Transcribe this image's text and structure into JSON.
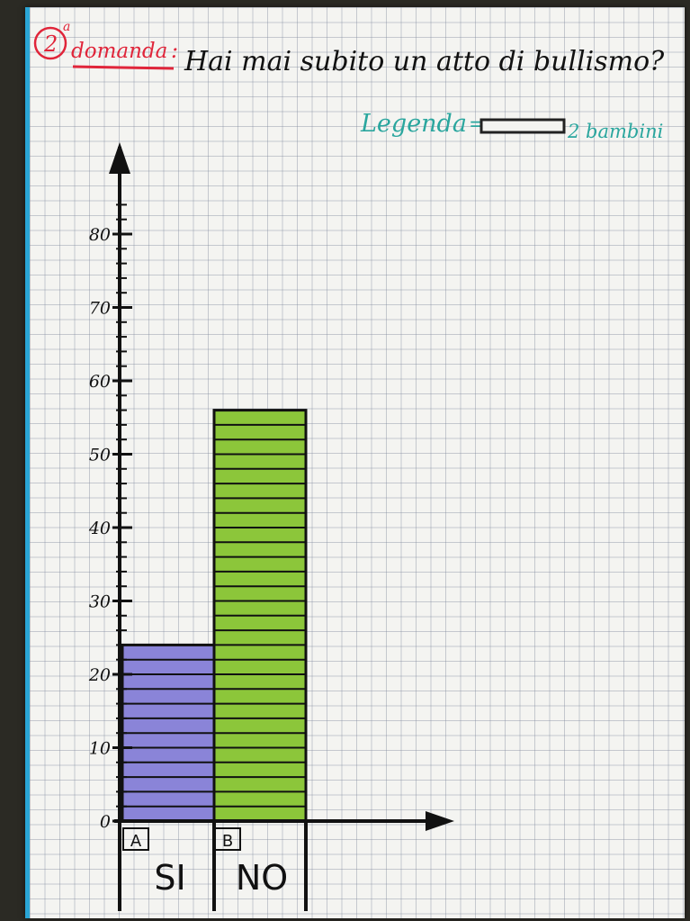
{
  "header": {
    "number": "2",
    "superscript": "a",
    "domanda": "domanda",
    "colon": ":",
    "question": "Hai mai subito un atto di bullismo?"
  },
  "legend": {
    "label": "Legenda",
    "equals": "=",
    "unit_text": "2 bambini"
  },
  "colors": {
    "ink": "#111111",
    "red": "#e0253a",
    "teal": "#2aa69e",
    "purple": "#8a84d8",
    "green": "#8cc63a"
  },
  "chart_data": {
    "type": "bar",
    "categories": [
      "SI",
      "NO"
    ],
    "category_codes": [
      "A",
      "B"
    ],
    "values": [
      24,
      56
    ],
    "yticks": [
      0,
      10,
      20,
      30,
      40,
      50,
      60,
      70,
      80
    ],
    "ylim": [
      0,
      86
    ],
    "minor_tick_step": 2,
    "bar_colors": [
      "#8a84d8",
      "#8cc63a"
    ],
    "legend_units_per_stripe": 2,
    "grid": true
  }
}
